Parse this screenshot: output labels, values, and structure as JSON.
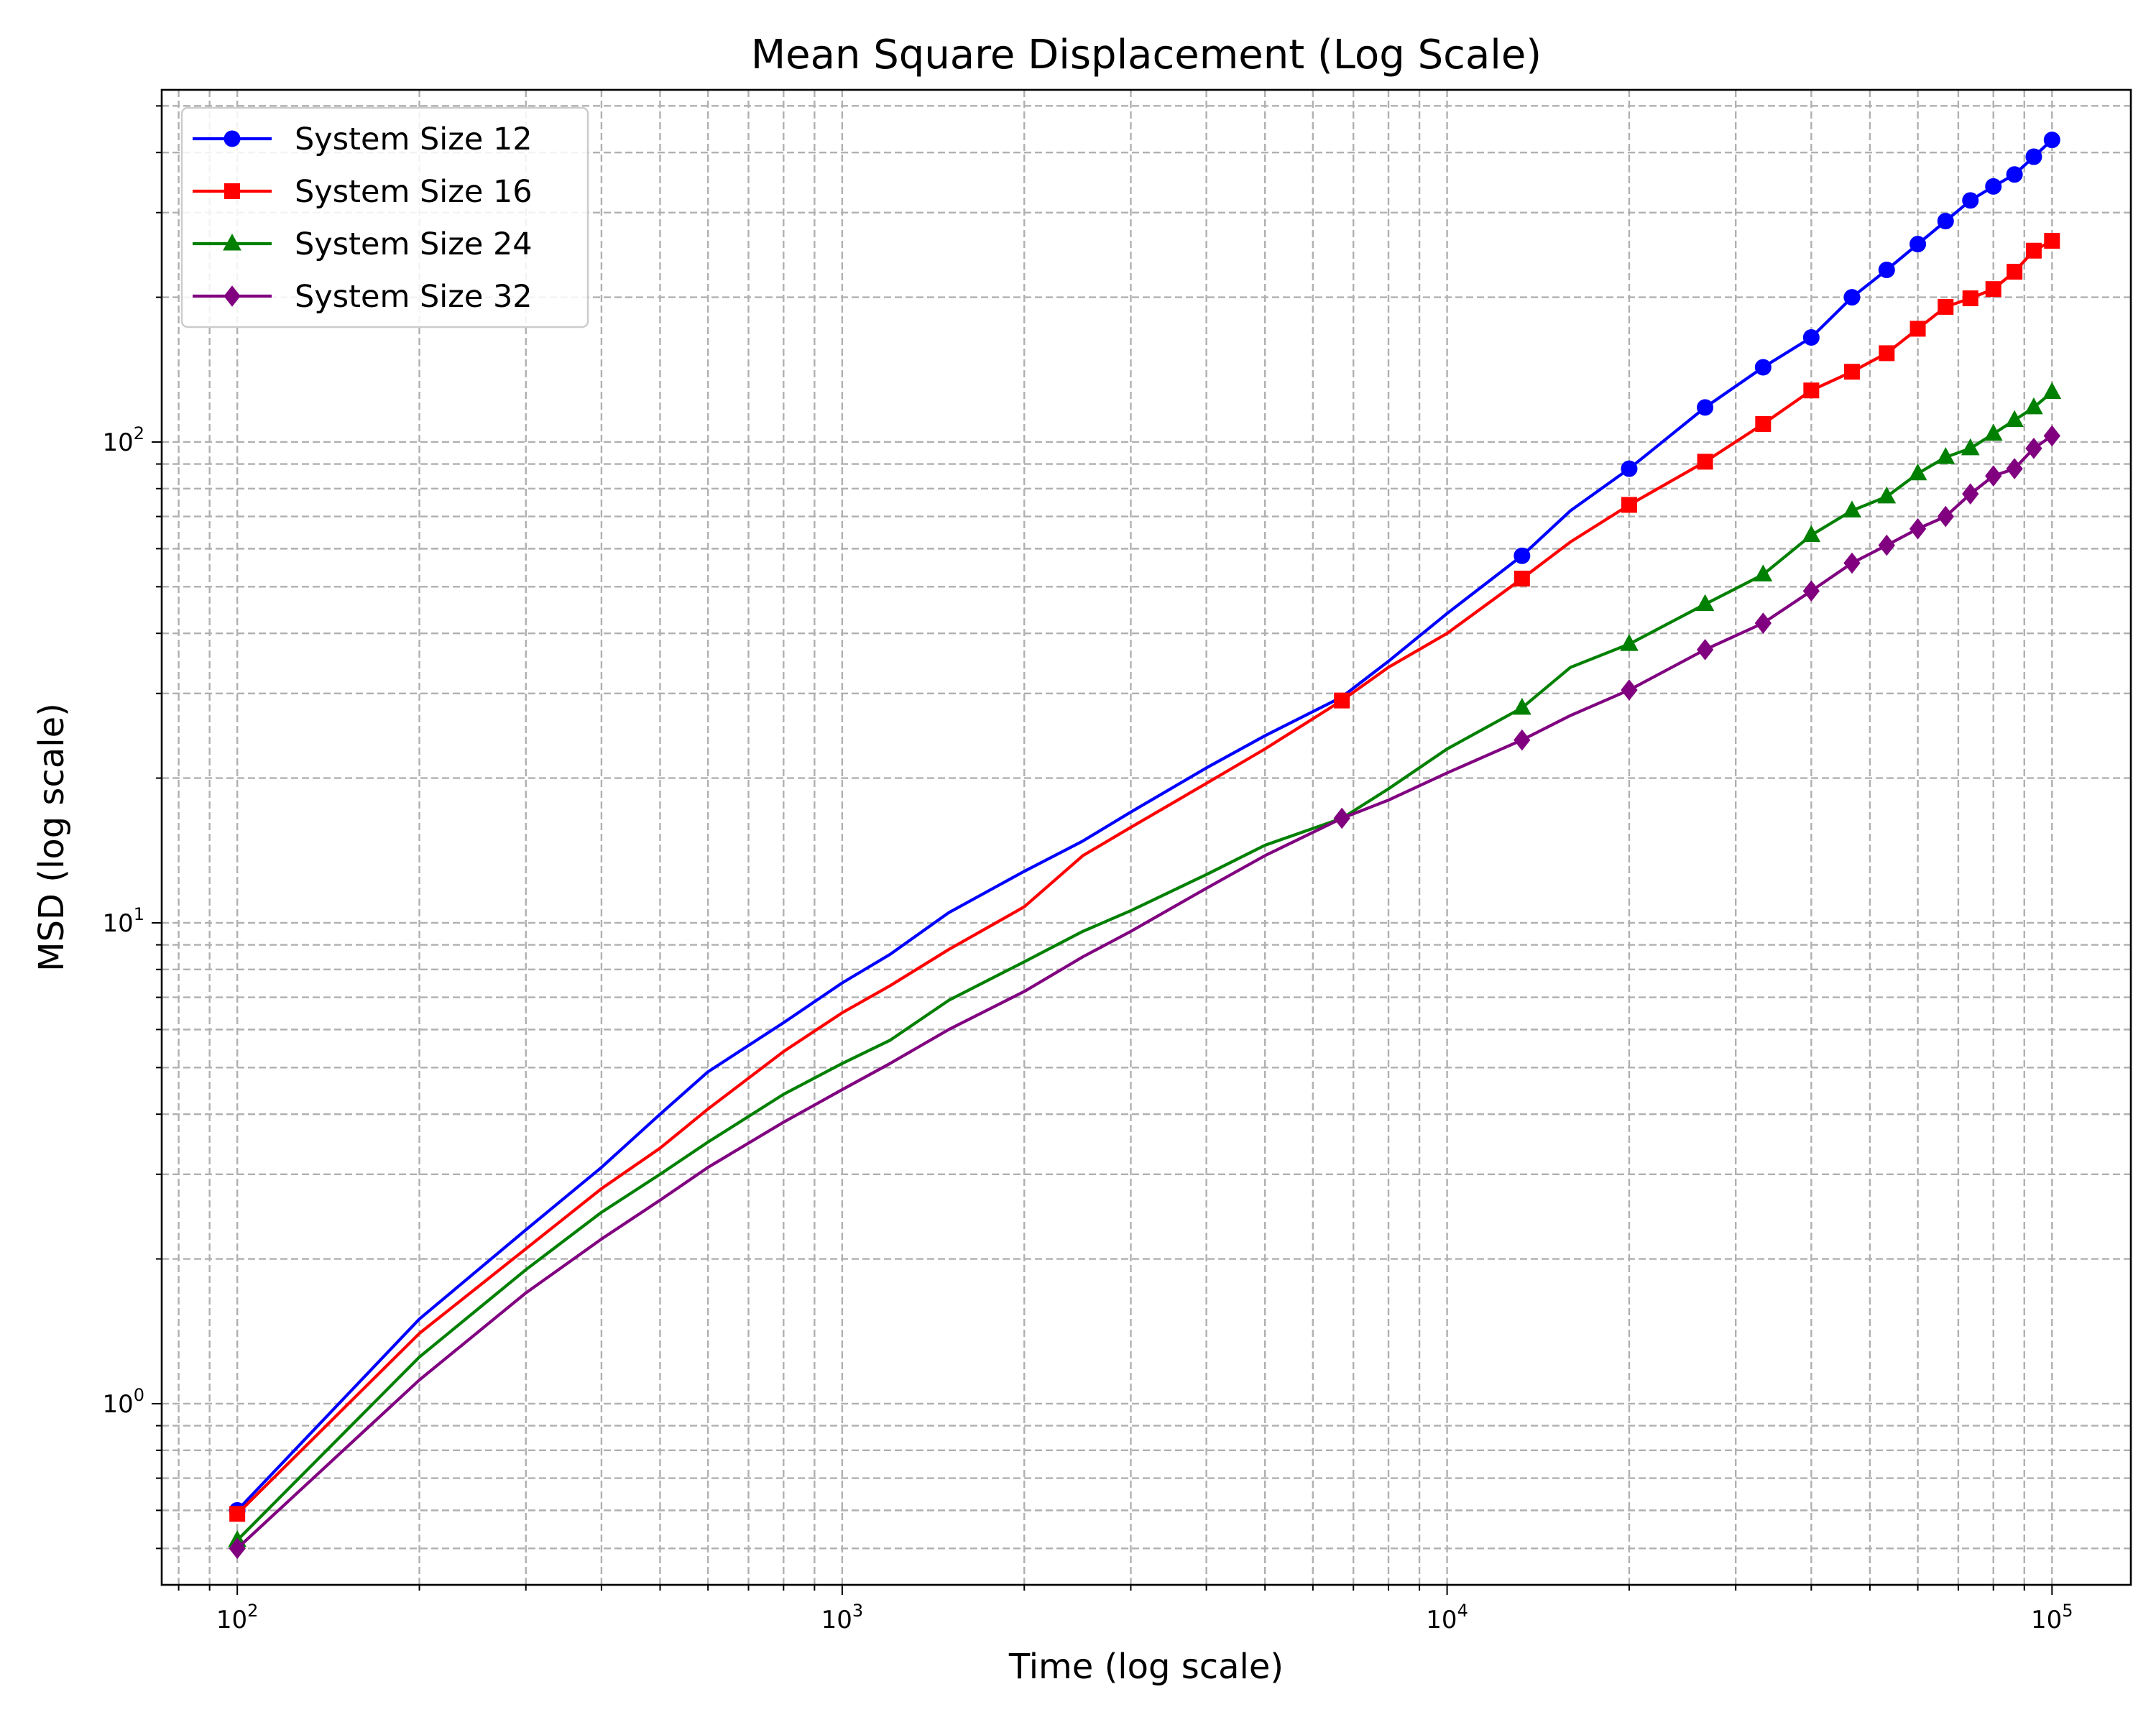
{
  "chart_data": {
    "type": "line",
    "title": "Mean Square Displacement (Log Scale)",
    "xlabel": "Time (log scale)",
    "ylabel": "MSD (log scale)",
    "xscale": "log",
    "yscale": "log",
    "xlim": [
      75,
      135000
    ],
    "ylim": [
      0.42,
      540
    ],
    "grid": "major and minor, dashed",
    "legend": "upper-left",
    "xticks": [
      {
        "value": 100,
        "base": "10",
        "exp": "2"
      },
      {
        "value": 1000,
        "base": "10",
        "exp": "3"
      },
      {
        "value": 10000,
        "base": "10",
        "exp": "4"
      },
      {
        "value": 100000,
        "base": "10",
        "exp": "5"
      }
    ],
    "yticks": [
      {
        "value": 1,
        "base": "10",
        "exp": "0"
      },
      {
        "value": 10,
        "base": "10",
        "exp": "1"
      },
      {
        "value": 100,
        "base": "10",
        "exp": "2"
      }
    ],
    "series": [
      {
        "name": "System Size 12",
        "color": "#0000ff",
        "marker": "circle",
        "x": [
          100,
          200,
          300,
          400,
          500,
          600,
          800,
          1000,
          1200,
          1500,
          2000,
          2500,
          3000,
          4000,
          5000,
          6700,
          8000,
          10000,
          13300,
          16000,
          20000,
          26700,
          33300,
          40000,
          46700,
          53300,
          60000,
          66700,
          73300,
          80000,
          86700,
          93300,
          100000
        ],
        "y": [
          0.6,
          1.5,
          2.3,
          3.1,
          4.0,
          4.9,
          6.2,
          7.5,
          8.6,
          10.5,
          12.8,
          14.8,
          17.0,
          21.0,
          24.5,
          29.5,
          35.0,
          44.0,
          58.0,
          72.0,
          88.0,
          118.0,
          143.0,
          165.0,
          200.0,
          228.0,
          258.0,
          288.0,
          318.0,
          340.0,
          360.0,
          392.0,
          425.0
        ],
        "marker_x": [
          100,
          13300,
          20000,
          26700,
          33300,
          40000,
          46700,
          53300,
          60000,
          66700,
          73300,
          80000,
          86700,
          93300,
          100000
        ],
        "marker_y": [
          0.6,
          58.0,
          88.0,
          118.0,
          143.0,
          165.0,
          200.0,
          228.0,
          258.0,
          288.0,
          318.0,
          340.0,
          360.0,
          392.0,
          425.0
        ]
      },
      {
        "name": "System Size 16",
        "color": "#ff0000",
        "marker": "square",
        "x": [
          100,
          200,
          300,
          400,
          500,
          600,
          800,
          1000,
          1200,
          1500,
          2000,
          2500,
          3000,
          4000,
          5000,
          6700,
          8000,
          10000,
          13300,
          16000,
          20000,
          26700,
          33300,
          40000,
          46700,
          53300,
          60000,
          66700,
          73300,
          80000,
          86700,
          93300,
          100000
        ],
        "y": [
          0.59,
          1.4,
          2.1,
          2.8,
          3.4,
          4.1,
          5.4,
          6.5,
          7.4,
          8.8,
          10.8,
          13.8,
          15.8,
          19.5,
          23.0,
          29.0,
          34.0,
          40.0,
          52.0,
          62.0,
          74.0,
          91.0,
          109.0,
          128.0,
          140.0,
          153.0,
          172.0,
          191.0,
          199.0,
          208.0,
          226.0,
          250.0,
          262.0
        ],
        "marker_x": [
          100,
          6700,
          13300,
          20000,
          26700,
          33300,
          40000,
          46700,
          53300,
          60000,
          66700,
          73300,
          80000,
          86700,
          93300,
          100000
        ],
        "marker_y": [
          0.59,
          29.0,
          52.0,
          74.0,
          91.0,
          109.0,
          128.0,
          140.0,
          153.0,
          172.0,
          191.0,
          199.0,
          208.0,
          226.0,
          250.0,
          262.0
        ]
      },
      {
        "name": "System Size 24",
        "color": "#008000",
        "marker": "triangle",
        "x": [
          100,
          200,
          300,
          400,
          500,
          600,
          800,
          1000,
          1200,
          1500,
          2000,
          2500,
          3000,
          4000,
          5000,
          6700,
          8000,
          10000,
          13300,
          16000,
          20000,
          26700,
          33300,
          40000,
          46700,
          53300,
          60000,
          66700,
          73300,
          80000,
          86700,
          93300,
          100000
        ],
        "y": [
          0.52,
          1.25,
          1.9,
          2.5,
          3.0,
          3.5,
          4.4,
          5.1,
          5.7,
          6.9,
          8.3,
          9.6,
          10.6,
          12.6,
          14.5,
          16.5,
          19.0,
          23.0,
          28.0,
          34.0,
          38.0,
          46.0,
          53.0,
          64.0,
          72.0,
          77.0,
          86.0,
          93.0,
          97.0,
          104.0,
          111.0,
          118.0,
          127.0
        ],
        "marker_x": [
          100,
          13300,
          20000,
          26700,
          33300,
          40000,
          46700,
          53300,
          60000,
          66700,
          73300,
          80000,
          86700,
          93300,
          100000
        ],
        "marker_y": [
          0.52,
          28.0,
          38.0,
          46.0,
          53.0,
          64.0,
          72.0,
          77.0,
          86.0,
          93.0,
          97.0,
          104.0,
          111.0,
          118.0,
          127.0
        ]
      },
      {
        "name": "System Size 32",
        "color": "#800080",
        "marker": "diamond",
        "x": [
          100,
          200,
          300,
          400,
          500,
          600,
          800,
          1000,
          1200,
          1500,
          2000,
          2500,
          3000,
          4000,
          5000,
          6700,
          8000,
          10000,
          13300,
          16000,
          20000,
          26700,
          33300,
          40000,
          46700,
          53300,
          60000,
          66700,
          73300,
          80000,
          86700,
          93300,
          100000
        ],
        "y": [
          0.5,
          1.12,
          1.7,
          2.2,
          2.65,
          3.1,
          3.85,
          4.5,
          5.1,
          6.0,
          7.2,
          8.5,
          9.6,
          11.8,
          13.8,
          16.5,
          18.0,
          20.5,
          24.0,
          27.0,
          30.5,
          37.0,
          42.0,
          49.0,
          56.0,
          61.0,
          66.0,
          70.0,
          78.0,
          85.0,
          88.0,
          97.0,
          103.0
        ],
        "marker_x": [
          100,
          6700,
          13300,
          20000,
          26700,
          33300,
          40000,
          46700,
          53300,
          60000,
          66700,
          73300,
          80000,
          86700,
          93300,
          100000
        ],
        "marker_y": [
          0.5,
          16.5,
          24.0,
          30.5,
          37.0,
          42.0,
          49.0,
          56.0,
          61.0,
          66.0,
          70.0,
          78.0,
          85.0,
          88.0,
          97.0,
          103.0
        ]
      }
    ]
  }
}
